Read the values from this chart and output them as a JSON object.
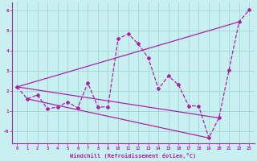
{
  "xlabel": "Windchill (Refroidissement éolien,°C)",
  "background_color": "#c8f0f0",
  "grid_color": "#a8dada",
  "line_color": "#aa22aa",
  "ylim": [
    -0.6,
    6.4
  ],
  "xlim": [
    -0.5,
    23.5
  ],
  "yticks": [
    0,
    1,
    2,
    3,
    4,
    5,
    6
  ],
  "ytick_labels": [
    "-0",
    "1",
    "2",
    "3",
    "4",
    "5",
    "6"
  ],
  "xticks": [
    0,
    1,
    2,
    3,
    4,
    5,
    6,
    7,
    8,
    9,
    10,
    11,
    12,
    13,
    14,
    15,
    16,
    17,
    18,
    19,
    20,
    21,
    22,
    23
  ],
  "series_main": {
    "x": [
      0,
      1,
      2,
      3,
      4,
      5,
      6,
      7,
      8,
      9,
      10,
      11,
      12,
      13,
      14,
      15,
      16,
      17,
      18,
      19,
      20,
      21,
      22,
      23
    ],
    "y": [
      2.2,
      1.6,
      1.8,
      1.1,
      1.2,
      1.45,
      1.15,
      2.4,
      1.2,
      1.2,
      4.6,
      4.85,
      4.35,
      3.65,
      2.1,
      2.75,
      2.3,
      1.25,
      1.25,
      -0.35,
      0.65,
      3.05,
      5.45,
      6.05
    ]
  },
  "series_lines": [
    {
      "x": [
        0,
        22
      ],
      "y": [
        2.2,
        5.45
      ]
    },
    {
      "x": [
        0,
        20
      ],
      "y": [
        2.2,
        0.65
      ]
    },
    {
      "x": [
        1,
        19
      ],
      "y": [
        1.6,
        -0.35
      ]
    }
  ]
}
